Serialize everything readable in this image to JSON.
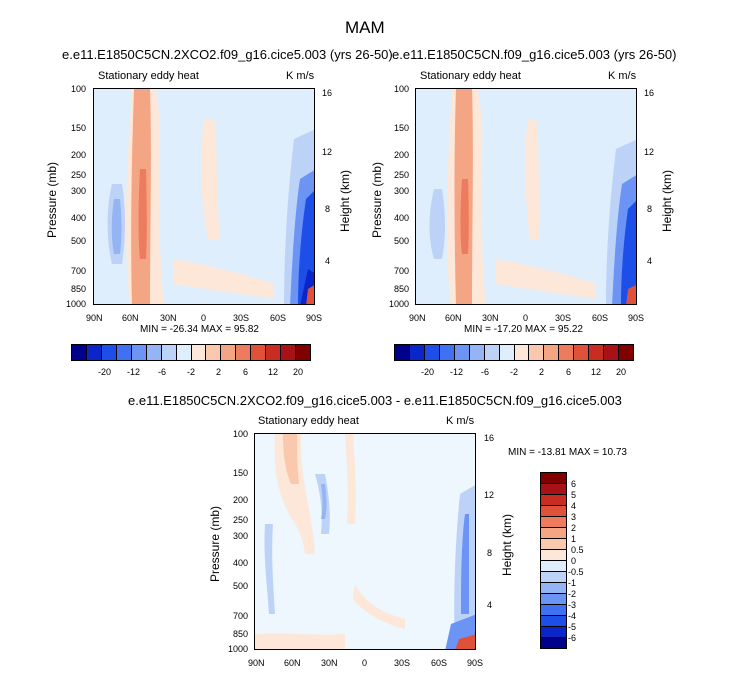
{
  "main_title": "MAM",
  "chart_data": [
    {
      "type": "heatmap",
      "title": "e.e11.E1850C5CN.2XCO2.f09_g16.cice5.003 (yrs 26-50)",
      "left_label": "Stationary eddy heat",
      "right_label": "K m/s",
      "xlabel": "",
      "ylabel": "Pressure (mb)",
      "y2label": "Height (km)",
      "x_ticks": [
        "90N",
        "60N",
        "30N",
        "0",
        "30S",
        "60S",
        "90S"
      ],
      "y_ticks": [
        "100",
        "150",
        "200",
        "250",
        "300",
        "400",
        "500",
        "700",
        "850",
        "1000"
      ],
      "y2_ticks": [
        "16",
        "12",
        "8",
        "4"
      ],
      "stats": "MIN = -26.34   MAX = 95.82",
      "colorbar_labels": [
        "-20",
        "-12",
        "-6",
        "-2",
        "2",
        "6",
        "12",
        "20"
      ]
    },
    {
      "type": "heatmap",
      "title": "e.e11.E1850C5CN.f09_g16.cice5.003 (yrs 26-50)",
      "left_label": "Stationary eddy heat",
      "right_label": "K m/s",
      "xlabel": "",
      "ylabel": "Pressure (mb)",
      "y2label": "Height (km)",
      "x_ticks": [
        "90N",
        "60N",
        "30N",
        "0",
        "30S",
        "60S",
        "90S"
      ],
      "y_ticks": [
        "100",
        "150",
        "200",
        "250",
        "300",
        "400",
        "500",
        "700",
        "850",
        "1000"
      ],
      "y2_ticks": [
        "16",
        "12",
        "8",
        "4"
      ],
      "stats": "MIN = -17.20   MAX = 95.22",
      "colorbar_labels": [
        "-20",
        "-12",
        "-6",
        "-2",
        "2",
        "6",
        "12",
        "20"
      ]
    },
    {
      "type": "heatmap",
      "title": "e.e11.E1850C5CN.2XCO2.f09_g16.cice5.003 - e.e11.E1850C5CN.f09_g16.cice5.003",
      "left_label": "Stationary eddy heat",
      "right_label": "K m/s",
      "xlabel": "",
      "ylabel": "Pressure (mb)",
      "y2label": "Height (km)",
      "x_ticks": [
        "90N",
        "60N",
        "30N",
        "0",
        "30S",
        "60S",
        "90S"
      ],
      "y_ticks": [
        "100",
        "150",
        "200",
        "250",
        "300",
        "400",
        "500",
        "700",
        "850",
        "1000"
      ],
      "y2_ticks": [
        "16",
        "12",
        "8",
        "4"
      ],
      "stats": "MIN = -13.81   MAX = 10.73",
      "colorbar_labels": [
        "6",
        "5",
        "4",
        "3",
        "2",
        "1",
        "0.5",
        "0",
        "-0.5",
        "-1",
        "-2",
        "-3",
        "-4",
        "-5",
        "-6"
      ]
    }
  ],
  "colors": {
    "scale16": [
      "#00008c",
      "#0a25c8",
      "#1d4ee8",
      "#3f71f2",
      "#6b94f5",
      "#95b4f3",
      "#bdd2f7",
      "#dfeefc",
      "#fde7d8",
      "#f9c8ad",
      "#f4a584",
      "#ec7c5d",
      "#e0513a",
      "#c92d22",
      "#a81216",
      "#800000"
    ]
  }
}
